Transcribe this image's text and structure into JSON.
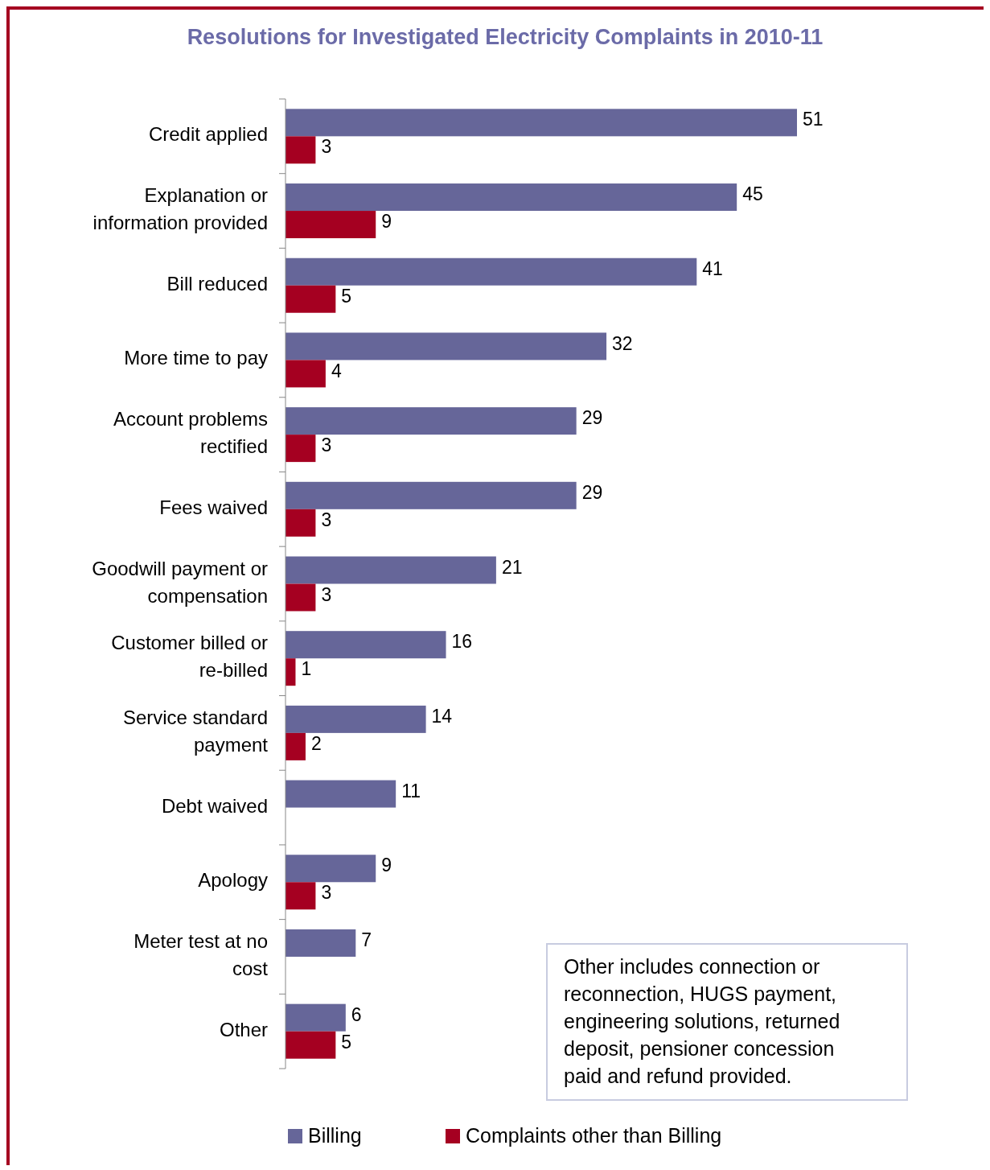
{
  "chart_data": {
    "type": "bar",
    "orientation": "horizontal",
    "title": "Resolutions for Investigated Electricity Complaints in 2010-11",
    "categories": [
      "Credit applied",
      "Explanation or information provided",
      "Bill reduced",
      "More time to pay",
      "Account problems rectified",
      "Fees waived",
      "Goodwill payment or compensation",
      "Customer billed or re-billed",
      "Service standard payment",
      "Debt waived",
      "Apology",
      "Meter test at no cost",
      "Other"
    ],
    "series": [
      {
        "name": "Billing",
        "color": "#666699",
        "values": [
          51,
          45,
          41,
          32,
          29,
          29,
          21,
          16,
          14,
          11,
          9,
          7,
          6
        ]
      },
      {
        "name": "Complaints other than Billing",
        "color": "#a50021",
        "values": [
          3,
          9,
          5,
          4,
          3,
          3,
          3,
          1,
          2,
          null,
          3,
          null,
          5
        ]
      }
    ],
    "data_labels": true,
    "legend": "bottom",
    "annotations": [
      "Other includes connection or reconnection, HUGS payment, engineering solutions, returned deposit, pensioner concession paid and refund provided."
    ]
  }
}
